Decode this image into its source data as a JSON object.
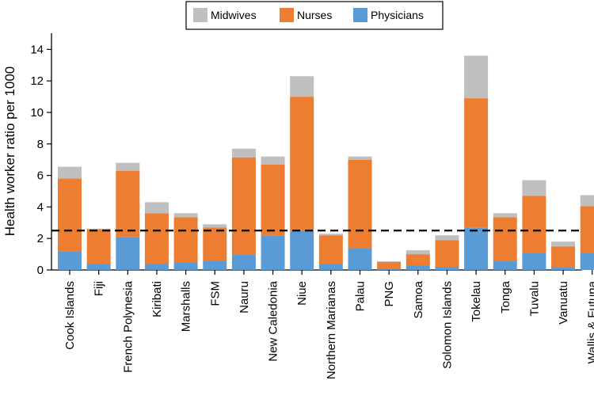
{
  "chart_data": {
    "type": "bar",
    "stacked": true,
    "ylabel": "Health worker ratio per 1000",
    "xlabel": "",
    "ylim": [
      0,
      15
    ],
    "yticks": [
      0,
      2,
      4,
      6,
      8,
      10,
      12,
      14
    ],
    "legend": "top-center",
    "reference_line": 2.5,
    "categories": [
      "Cook Islands",
      "Fiji",
      "French Polynesia",
      "Kiribati",
      "Marshalls",
      "FSM",
      "Nauru",
      "New Caledonia",
      "Niue",
      "Northern Marianas",
      "Palau",
      "PNG",
      "Samoa",
      "Solomon Islands",
      "Tokelau",
      "Tonga",
      "Tuvalu",
      "Vanuatu",
      "Wallis & Futuna"
    ],
    "series": [
      {
        "name": "Physicians",
        "color": "#5b9bd5",
        "values": [
          1.2,
          0.4,
          2.1,
          0.4,
          0.5,
          0.6,
          1.0,
          2.2,
          2.5,
          0.4,
          1.4,
          0.05,
          0.3,
          0.2,
          2.7,
          0.55,
          1.1,
          0.15,
          1.1
        ]
      },
      {
        "name": "Nurses",
        "color": "#ed7d31",
        "values": [
          4.6,
          2.2,
          4.2,
          3.2,
          2.85,
          2.1,
          6.15,
          4.5,
          8.5,
          1.8,
          5.6,
          0.45,
          0.7,
          1.7,
          8.2,
          2.8,
          3.6,
          1.35,
          2.95
        ]
      },
      {
        "name": "Midwives",
        "color": "#bfbfbf",
        "values": [
          0.75,
          0.02,
          0.5,
          0.7,
          0.25,
          0.2,
          0.55,
          0.5,
          1.3,
          0.1,
          0.2,
          0.05,
          0.25,
          0.3,
          2.7,
          0.25,
          1.0,
          0.3,
          0.7
        ]
      }
    ]
  }
}
